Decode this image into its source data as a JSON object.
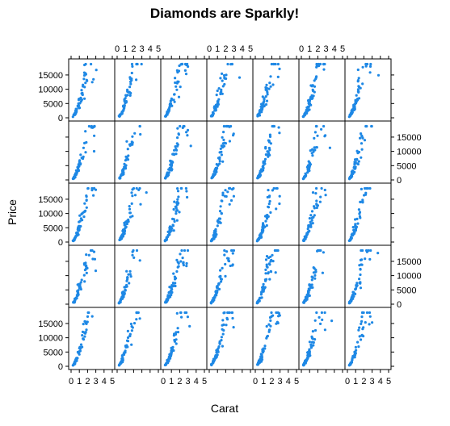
{
  "chart_data": {
    "type": "scatter",
    "layout": "lattice-grid",
    "title": "Diamonds are Sparkly!",
    "xlabel": "Carat",
    "ylabel": "Price",
    "xlim": [
      0,
      5
    ],
    "ylim": [
      0,
      19500
    ],
    "x_ticks": [
      0,
      1,
      2,
      3,
      4,
      5
    ],
    "y_ticks": [
      0,
      5000,
      10000,
      15000
    ],
    "rows": 5,
    "cols": 7,
    "point_color": "#1E88E5",
    "grid": false,
    "panel_strips": false,
    "panels_note": "35 panels (5 rows x 7 columns) of price vs carat; each panel shows a steeply rising cloud: price rises from ~300 near 0.2 carat to ~18,500 by about 2 carats, with a few sparse points extending to 3-5 carats.",
    "representative_points": [
      [
        0.25,
        400
      ],
      [
        0.3,
        550
      ],
      [
        0.4,
        900
      ],
      [
        0.5,
        1500
      ],
      [
        0.6,
        2000
      ],
      [
        0.7,
        2800
      ],
      [
        0.8,
        3300
      ],
      [
        0.9,
        4200
      ],
      [
        1.0,
        5200
      ],
      [
        1.1,
        6300
      ],
      [
        1.2,
        7200
      ],
      [
        1.3,
        8500
      ],
      [
        1.5,
        10500
      ],
      [
        1.7,
        12500
      ],
      [
        2.0,
        16000
      ],
      [
        2.2,
        17500
      ],
      [
        2.5,
        18000
      ],
      [
        3.0,
        17500
      ],
      [
        4.0,
        16500
      ],
      [
        5.0,
        18000
      ]
    ]
  }
}
